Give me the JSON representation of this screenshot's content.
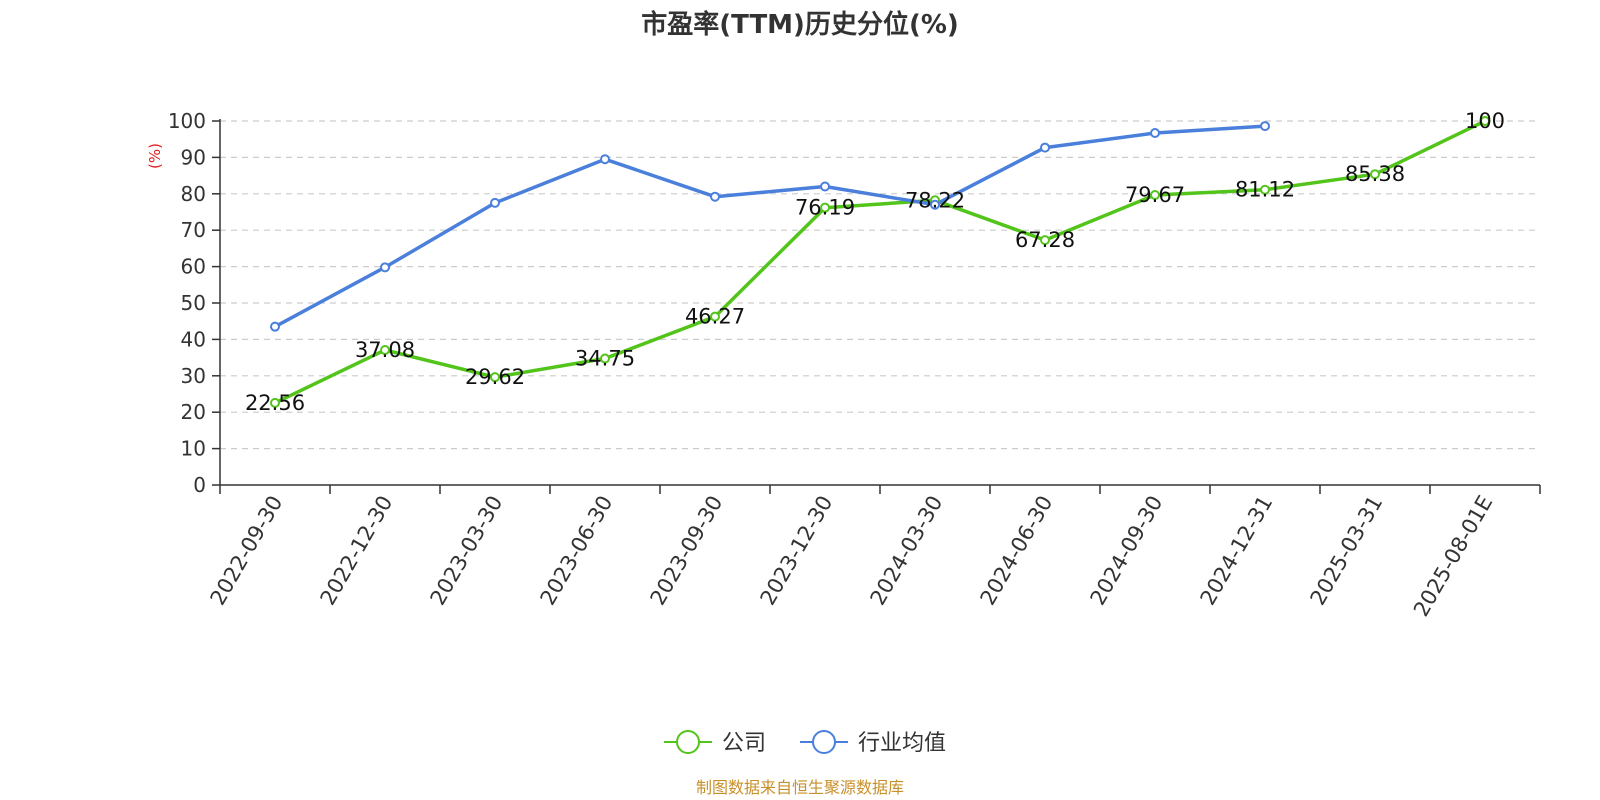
{
  "chart_data": {
    "type": "line",
    "title": "市盈率(TTM)历史分位(%)",
    "ylabel": "(%)",
    "ylim": [
      0,
      100
    ],
    "yticks": [
      0,
      10,
      20,
      30,
      40,
      50,
      60,
      70,
      80,
      90,
      100
    ],
    "categories": [
      "2022-09-30",
      "2022-12-30",
      "2023-03-30",
      "2023-06-30",
      "2023-09-30",
      "2023-12-30",
      "2024-03-30",
      "2024-06-30",
      "2024-09-30",
      "2024-12-31",
      "2025-03-31",
      "2025-08-01E"
    ],
    "grid": true,
    "legend_position": "bottom",
    "series": [
      {
        "name": "公司",
        "color": "#52c41a",
        "values": [
          22.56,
          37.08,
          29.62,
          34.75,
          46.27,
          76.19,
          78.22,
          67.28,
          79.67,
          81.12,
          85.38,
          100
        ],
        "labels": [
          "22.56",
          "37.08",
          "29.62",
          "34.75",
          "46.27",
          "76.19",
          "78.22",
          "67.28",
          "79.67",
          "81.12",
          "85.38",
          "100"
        ]
      },
      {
        "name": "行业均值",
        "color": "#4a7fdc",
        "values": [
          43.5,
          59.8,
          77.5,
          89.5,
          79.2,
          82.0,
          77.0,
          92.7,
          96.7,
          98.6,
          null,
          null
        ]
      }
    ]
  },
  "source": {
    "text": "制图数据来自恒生聚源数据库",
    "color": "#c8902a"
  },
  "colors": {
    "ylabel": "#e02020",
    "axis": "#333333",
    "grid": "#cccccc"
  }
}
